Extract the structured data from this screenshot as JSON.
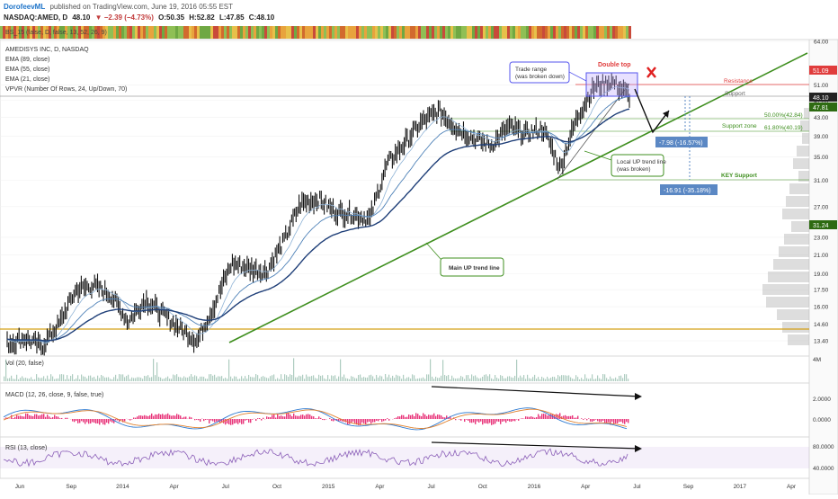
{
  "header": {
    "author": "DorofeevML",
    "published": "published on TradingView.com, June 19, 2016 05:55 EST",
    "symbol": "NASDAQ:AMED, D",
    "last": "48.10",
    "change": "▼ −2.39 (−4.73%)",
    "open": "O:50.35",
    "high": "H:52.82",
    "low": "L:47.85",
    "close": "C:48.10"
  },
  "top_strip": {
    "label": "BS_15 (false, D, false, 13, 52, 26, 9)"
  },
  "legend": [
    "AMEDISYS INC, D, NASDAQ",
    "EMA (89, close)",
    "EMA (55, close)",
    "EMA (21, close)",
    "VPVR (Number Of Rows, 24, Up/Down, 70)"
  ],
  "annotations": {
    "double_top": "Double top",
    "trade_range": [
      "Trade range",
      "(was broken down)"
    ],
    "resistance": "Resistance",
    "support": "Support",
    "fib50": "50.00%(42.84)",
    "support_zone": "Support zone",
    "fib618": "61.80%(40.19)",
    "drop1": "-7.98 (-16.57%)",
    "drop2": "-16.91 (-35.18%)",
    "key_support": "KEY Support",
    "local_trend": [
      "Local UP trend line",
      "(was broken)"
    ],
    "main_trend": "Main UP trend line"
  },
  "price_badges": {
    "resistance": "51.09",
    "last": "48.10",
    "ema": "47.81",
    "key": "31.24"
  },
  "panels": {
    "vol_label": "Vol (20, false)",
    "vol_tick": "4M",
    "macd_label": "MACD (12, 26, close, 9, false, true)",
    "macd_ticks": [
      "2.0000",
      "0.0000"
    ],
    "rsi_label": "RSI (13, close)",
    "rsi_ticks": [
      "80.0000",
      "40.0000"
    ]
  },
  "colors": {
    "trendline": "#3f8f1f",
    "price": "#111111",
    "ema21": "#8fb3d6",
    "ema55": "#4f82b8",
    "ema89": "#1f3f78",
    "resistance": "#e03c3c",
    "badge_green": "#2e6b12",
    "badge_gray": "#333333",
    "measure": "#5b88c4",
    "horizontal": "#d4a017",
    "macd_line": "#2f7bd1",
    "signal_line": "#e0822f",
    "hist": "#e8357a",
    "rsi": "#8b5fb8"
  },
  "chart_data": {
    "type": "line",
    "title": "AMEDISYS INC, D, NASDAQ",
    "y_scale": "log",
    "y_ticks": [
      "64.00",
      "51.00",
      "47.00",
      "43.00",
      "39.00",
      "35.00",
      "31.00",
      "27.00",
      "23.00",
      "21.00",
      "19.00",
      "17.50",
      "16.00",
      "14.60",
      "13.40"
    ],
    "x_ticks": [
      "Jun",
      "Sep",
      "2014",
      "Apr",
      "Jul",
      "Oct",
      "2015",
      "Apr",
      "Jul",
      "Oct",
      "2016",
      "Apr",
      "Jul",
      "Sep",
      "2017",
      "Apr"
    ],
    "x": [
      "2013-06",
      "2013-07",
      "2013-08",
      "2013-09",
      "2013-10",
      "2013-11",
      "2013-12",
      "2014-01",
      "2014-02",
      "2014-03",
      "2014-04",
      "2014-05",
      "2014-06",
      "2014-07",
      "2014-08",
      "2014-09",
      "2014-10",
      "2014-11",
      "2014-12",
      "2015-01",
      "2015-02",
      "2015-03",
      "2015-04",
      "2015-05",
      "2015-06",
      "2015-07",
      "2015-08",
      "2015-09",
      "2015-10",
      "2015-11",
      "2015-12",
      "2016-01",
      "2016-02",
      "2016-03",
      "2016-04",
      "2016-05",
      "2016-06"
    ],
    "series": [
      {
        "values": [
          13.2,
          13.6,
          13.0,
          14.6,
          17.5,
          17.9,
          17.0,
          14.8,
          16.6,
          15.4,
          14.3,
          13.4,
          16.2,
          20.1,
          19.6,
          19.2,
          22.5,
          27.5,
          28.1,
          26.3,
          26.0,
          25.3,
          33.8,
          37.6,
          42.0,
          44.5,
          40.7,
          38.6,
          37.2,
          40.9,
          39.5,
          40.6,
          32.9,
          43.2,
          50.6,
          51.9,
          48.1
        ]
      }
    ],
    "levels": {
      "resistance": 51.09,
      "support": 47.81,
      "fib50": 42.84,
      "fib618": 40.19,
      "key_support": 31.24,
      "horizontal": 14.6
    }
  }
}
